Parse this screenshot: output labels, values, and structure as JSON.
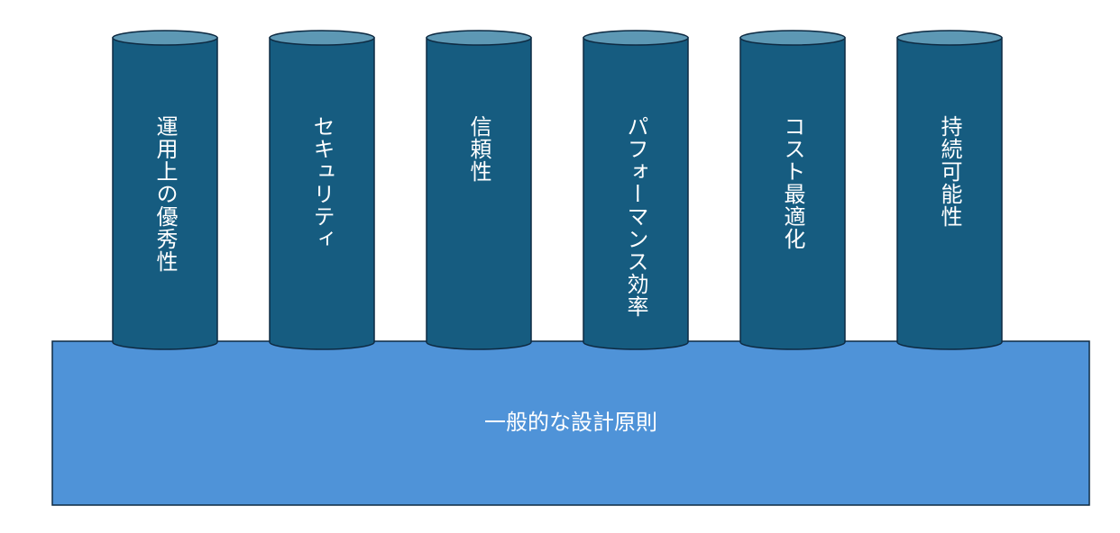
{
  "foundation": {
    "label": "一般的な設計原則",
    "fill_color": "#4f93d8",
    "stroke_color": "#0d2a42"
  },
  "pillars": [
    {
      "label": "運用上の優秀性"
    },
    {
      "label": "セキュリティ"
    },
    {
      "label": "信頼性"
    },
    {
      "label": "パフォーマンス効率"
    },
    {
      "label": "コスト最適化"
    },
    {
      "label": "持続可能性"
    }
  ],
  "pillar_style": {
    "body_color": "#165c80",
    "top_color": "#5d98b4",
    "stroke_color": "#0d2a42"
  }
}
